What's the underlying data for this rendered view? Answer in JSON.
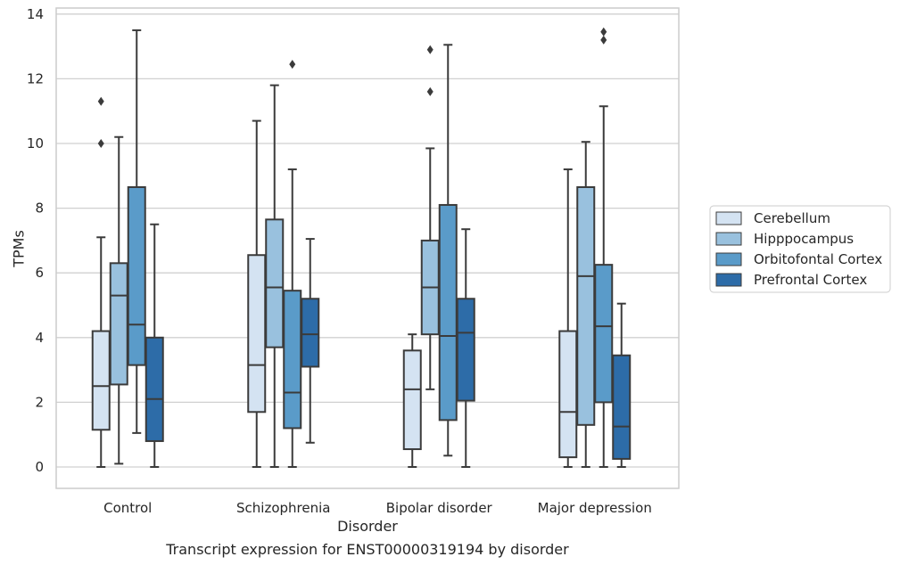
{
  "chart_data": {
    "type": "box",
    "title": "",
    "caption": "Transcript expression for ENST00000319194 by disorder",
    "xlabel": "Disorder",
    "ylabel": "TPMs",
    "ylim": [
      -0.65,
      14.2
    ],
    "yticks": [
      0,
      2,
      4,
      6,
      8,
      10,
      12,
      14
    ],
    "grid": "y",
    "legend_position": "right",
    "categories": [
      "Control",
      "Schizophrenia",
      "Bipolar disorder",
      "Major depression"
    ],
    "series": [
      {
        "name": "Cerebellum",
        "color": "#d4e3f2",
        "boxes": [
          {
            "whislo": 0.0,
            "q1": 1.15,
            "med": 2.5,
            "q3": 4.2,
            "whishi": 7.1,
            "fliers": [
              10.0,
              11.3
            ]
          },
          {
            "whislo": 0.0,
            "q1": 1.7,
            "med": 3.15,
            "q3": 6.55,
            "whishi": 10.7,
            "fliers": []
          },
          {
            "whislo": 0.0,
            "q1": 0.55,
            "med": 2.4,
            "q3": 3.6,
            "whishi": 4.1,
            "fliers": []
          },
          {
            "whislo": 0.0,
            "q1": 0.3,
            "med": 1.7,
            "q3": 4.2,
            "whishi": 9.2,
            "fliers": []
          }
        ]
      },
      {
        "name": "Hipppocampus",
        "color": "#99c1de",
        "boxes": [
          {
            "whislo": 0.1,
            "q1": 2.55,
            "med": 5.3,
            "q3": 6.3,
            "whishi": 10.2,
            "fliers": []
          },
          {
            "whislo": 0.0,
            "q1": 3.7,
            "med": 5.55,
            "q3": 7.65,
            "whishi": 11.8,
            "fliers": []
          },
          {
            "whislo": 2.4,
            "q1": 4.1,
            "med": 5.55,
            "q3": 7.0,
            "whishi": 9.85,
            "fliers": [
              11.6,
              12.9
            ]
          },
          {
            "whislo": 0.0,
            "q1": 1.3,
            "med": 5.9,
            "q3": 8.65,
            "whishi": 10.05,
            "fliers": []
          }
        ]
      },
      {
        "name": "Orbitofontal Cortex",
        "color": "#5a9bc9",
        "boxes": [
          {
            "whislo": 1.05,
            "q1": 3.15,
            "med": 4.4,
            "q3": 8.65,
            "whishi": 13.5,
            "fliers": []
          },
          {
            "whislo": 0.0,
            "q1": 1.2,
            "med": 2.3,
            "q3": 5.45,
            "whishi": 9.2,
            "fliers": [
              12.45
            ]
          },
          {
            "whislo": 0.35,
            "q1": 1.45,
            "med": 4.05,
            "q3": 8.1,
            "whishi": 13.05,
            "fliers": []
          },
          {
            "whislo": 0.0,
            "q1": 2.0,
            "med": 4.35,
            "q3": 6.25,
            "whishi": 11.15,
            "fliers": [
              13.2,
              13.45
            ]
          }
        ]
      },
      {
        "name": "Prefrontal Cortex",
        "color": "#2d6ca8",
        "boxes": [
          {
            "whislo": 0.0,
            "q1": 0.8,
            "med": 2.1,
            "q3": 4.0,
            "whishi": 7.5,
            "fliers": []
          },
          {
            "whislo": 0.75,
            "q1": 3.1,
            "med": 4.1,
            "q3": 5.2,
            "whishi": 7.05,
            "fliers": []
          },
          {
            "whislo": 0.0,
            "q1": 2.05,
            "med": 4.15,
            "q3": 5.2,
            "whishi": 7.35,
            "fliers": []
          },
          {
            "whislo": 0.0,
            "q1": 0.25,
            "med": 1.25,
            "q3": 3.45,
            "whishi": 5.05,
            "fliers": []
          }
        ]
      }
    ]
  }
}
